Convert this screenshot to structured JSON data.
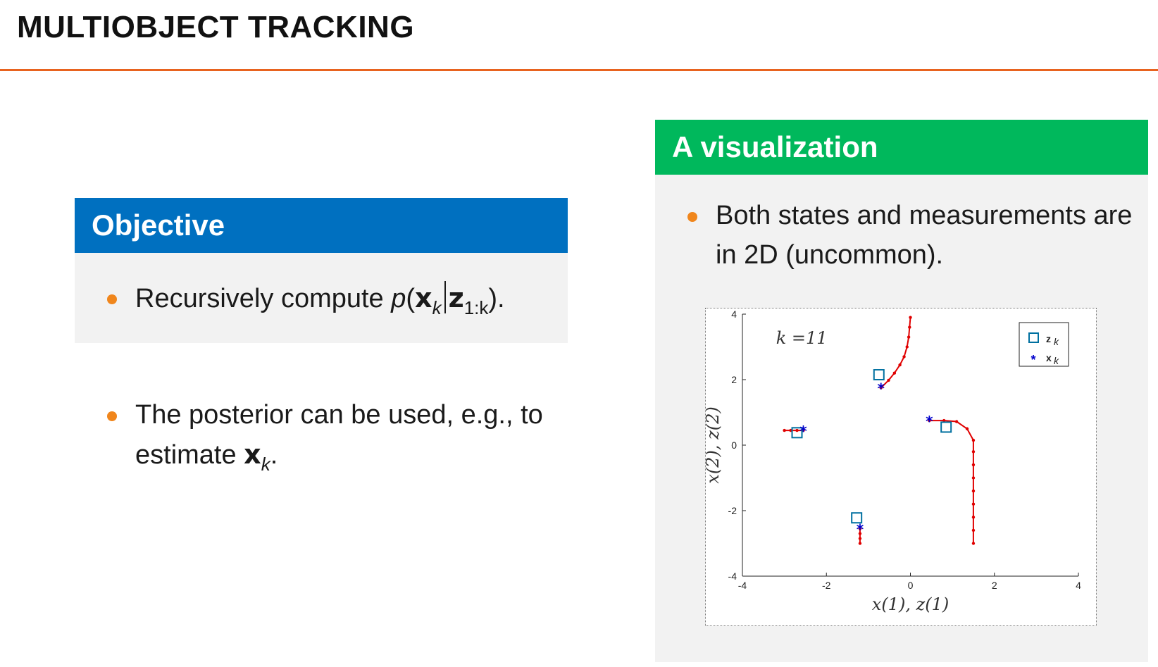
{
  "slide": {
    "title": "MULTIOBJECT TRACKING"
  },
  "objective": {
    "heading": "Objective",
    "bullet": {
      "prefix": "Recursively compute ",
      "p": "p",
      "open": "(",
      "x": "x",
      "x_sub": "k",
      "z": "z",
      "z_sub": "1:k",
      "close": ").",
      "separator": "|"
    }
  },
  "posterior": {
    "line1": "The posterior can be used, e.g., to",
    "line2_prefix": "estimate ",
    "x": "x",
    "x_sub": "k",
    "suffix": "."
  },
  "visualization": {
    "heading": "A visualization",
    "bullet_line1": "Both states and measurements are",
    "bullet_line2": "in 2D (uncommon)."
  },
  "colors": {
    "title_rule": "#e8631f",
    "objective_header": "#0070c0",
    "viz_header": "#00b85c",
    "bullet": "#f0861c",
    "track": "#e00000",
    "state_marker": "#0000cc",
    "measurement_marker": "#0070a0"
  },
  "chart_data": {
    "type": "scatter",
    "annotation": "k =11",
    "xlabel": "x(1), z(1)",
    "ylabel": "x(2), z(2)",
    "xlim": [
      -4,
      4
    ],
    "ylim": [
      -4,
      4
    ],
    "xticks": [
      "-4",
      "-2",
      "0",
      "2",
      "4"
    ],
    "yticks": [
      "-4",
      "-2",
      "0",
      "2",
      "4"
    ],
    "grid": false,
    "legend": {
      "placement": "top-right",
      "entries": [
        {
          "label": "z",
          "sub": "k",
          "marker": "square"
        },
        {
          "label": "x",
          "sub": "k",
          "marker": "star"
        }
      ]
    },
    "tracks": [
      {
        "points": [
          [
            -3.0,
            0.45
          ],
          [
            -2.85,
            0.45
          ],
          [
            -2.7,
            0.45
          ],
          [
            -2.55,
            0.45
          ]
        ]
      },
      {
        "points": [
          [
            0.0,
            3.9
          ],
          [
            -0.02,
            3.6
          ],
          [
            -0.04,
            3.3
          ],
          [
            -0.08,
            3.0
          ],
          [
            -0.15,
            2.7
          ],
          [
            -0.25,
            2.45
          ],
          [
            -0.38,
            2.2
          ],
          [
            -0.52,
            1.98
          ],
          [
            -0.7,
            1.75
          ]
        ]
      },
      {
        "points": [
          [
            -1.2,
            -3.0
          ],
          [
            -1.2,
            -2.85
          ],
          [
            -1.2,
            -2.7
          ],
          [
            -1.2,
            -2.55
          ]
        ]
      },
      {
        "points": [
          [
            1.5,
            -3.0
          ],
          [
            1.5,
            -2.6
          ],
          [
            1.5,
            -2.2
          ],
          [
            1.5,
            -1.8
          ],
          [
            1.5,
            -1.4
          ],
          [
            1.5,
            -1.0
          ],
          [
            1.5,
            -0.6
          ],
          [
            1.5,
            -0.2
          ],
          [
            1.5,
            0.15
          ],
          [
            1.35,
            0.5
          ],
          [
            1.1,
            0.72
          ],
          [
            0.8,
            0.75
          ],
          [
            0.45,
            0.75
          ]
        ]
      }
    ],
    "measurements": [
      [
        -2.7,
        0.38
      ],
      [
        -0.75,
        2.15
      ],
      [
        0.85,
        0.55
      ],
      [
        -1.28,
        -2.22
      ]
    ],
    "states": [
      [
        -2.55,
        0.45
      ],
      [
        -0.7,
        1.75
      ],
      [
        0.45,
        0.75
      ],
      [
        -1.2,
        -2.55
      ]
    ]
  }
}
